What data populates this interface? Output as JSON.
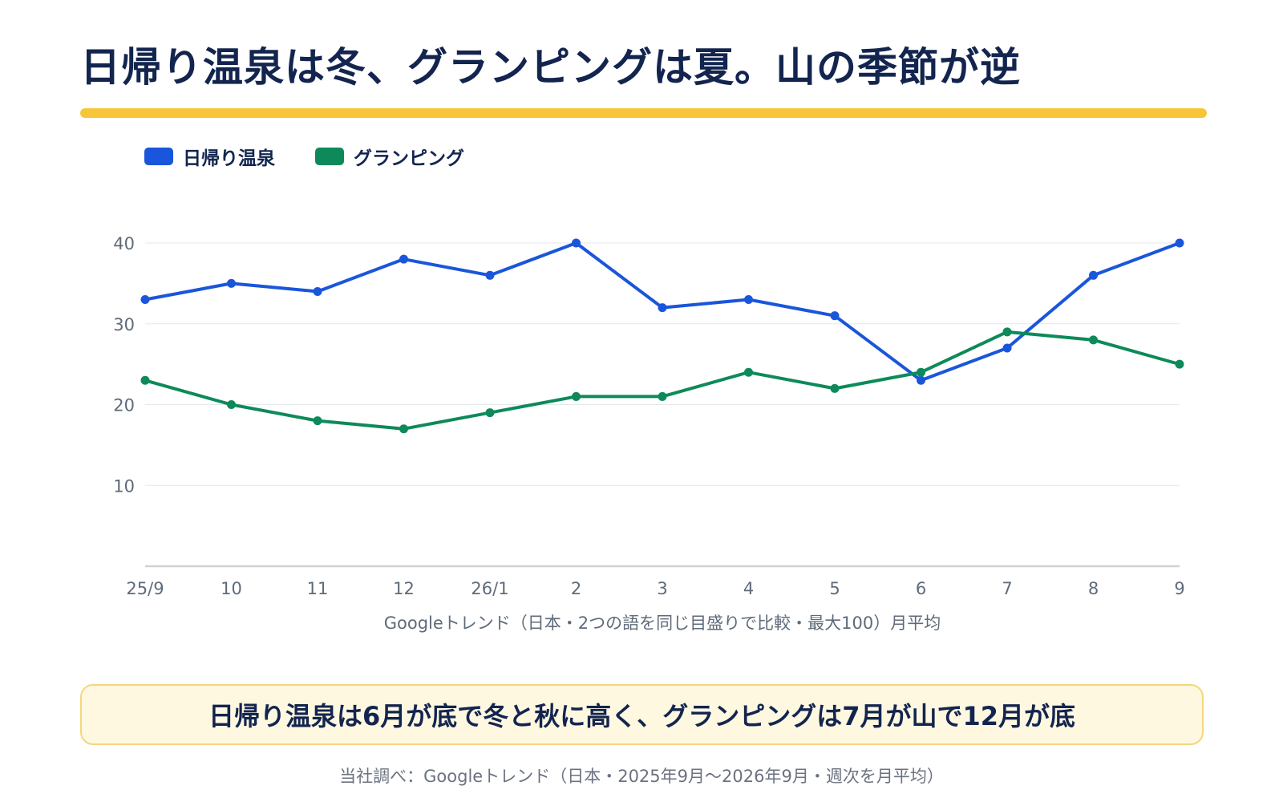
{
  "title": "日帰り温泉は冬、グランピングは夏。山の季節が逆",
  "accent_color": "#f7c638",
  "callout": {
    "text": "日帰り温泉は6月が底で冬と秋に高く、グランピングは7月が山で12月が底",
    "background": "#fff8e1",
    "border": "#f4d77a"
  },
  "source": "当社調べ：Googleトレンド（日本・2025年9月〜2026年9月・週次を月平均）",
  "chart_data": {
    "type": "line",
    "categories": [
      "25/9",
      "10",
      "11",
      "12",
      "26/1",
      "2",
      "3",
      "4",
      "5",
      "6",
      "7",
      "8",
      "9"
    ],
    "series": [
      {
        "name": "日帰り温泉",
        "color": "#1a56db",
        "values": [
          33,
          35,
          34,
          38,
          36,
          40,
          32,
          33,
          31,
          23,
          27,
          36,
          40
        ]
      },
      {
        "name": "グランピング",
        "color": "#0e8a5a",
        "values": [
          23,
          20,
          18,
          17,
          19,
          21,
          21,
          24,
          22,
          24,
          29,
          28,
          25
        ]
      }
    ],
    "xlabel": "Googleトレンド（日本・2つの語を同じ目盛りで比較・最大100）月平均",
    "ylabel": "",
    "ylim": [
      0,
      40
    ],
    "yticks": [
      10,
      20,
      30,
      40
    ],
    "grid": true,
    "legend": "top-left"
  }
}
